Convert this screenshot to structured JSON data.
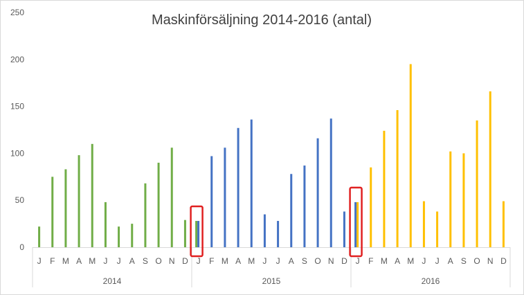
{
  "chart_data": {
    "type": "bar",
    "title": "Maskinförsäljning 2014-2016 (antal)",
    "xlabel": "",
    "ylabel": "",
    "ylim": [
      0,
      250
    ],
    "yticks": [
      0,
      50,
      100,
      150,
      200,
      250
    ],
    "grid": false,
    "legend": "none",
    "years": [
      "2014",
      "2015",
      "2016"
    ],
    "months": [
      "J",
      "F",
      "M",
      "A",
      "M",
      "J",
      "J",
      "A",
      "S",
      "O",
      "N",
      "D"
    ],
    "series": [
      {
        "year": "2014",
        "color": "#70AD47",
        "values": [
          22,
          75,
          83,
          98,
          110,
          48,
          22,
          25,
          68,
          90,
          106,
          29
        ]
      },
      {
        "year": "2015",
        "color": "#4472C4",
        "values": [
          28,
          97,
          106,
          127,
          136,
          35,
          28,
          78,
          87,
          116,
          137,
          38
        ]
      },
      {
        "year": "2016",
        "color": "#FFC000",
        "values": [
          48,
          85,
          124,
          146,
          195,
          49,
          38,
          102,
          100,
          135,
          166,
          49
        ]
      }
    ],
    "overlap_bars": [
      {
        "year": "2015",
        "month_index": 0,
        "color": "#70AD47",
        "value": 28
      },
      {
        "year": "2016",
        "month_index": 0,
        "color": "#4472C4",
        "value": 48
      }
    ],
    "highlight_boxes": [
      {
        "year": "2015",
        "month_index": 0,
        "color": "#E02020"
      },
      {
        "year": "2016",
        "month_index": 0,
        "color": "#E02020"
      }
    ]
  }
}
